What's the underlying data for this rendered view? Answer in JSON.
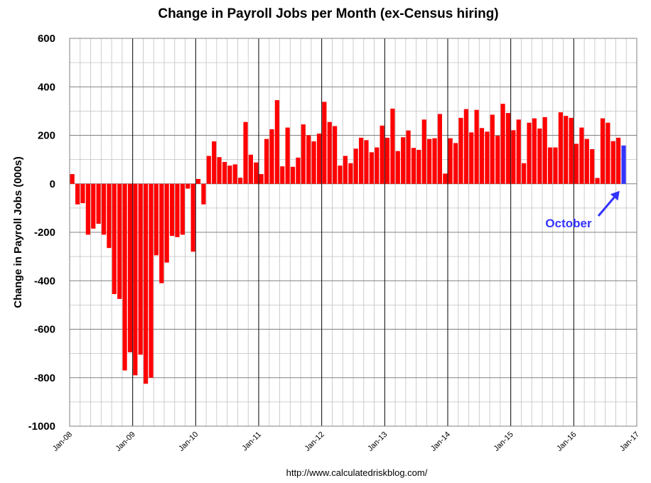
{
  "chart_data": {
    "type": "bar",
    "title": "Change in Payroll Jobs per Month (ex-Census hiring)",
    "ylabel": "Change in Payroll Jobs (000s)",
    "xlabel": "",
    "ylim": [
      -1000,
      600
    ],
    "yticks": [
      600,
      400,
      200,
      0,
      -200,
      -400,
      -600,
      -800,
      -1000
    ],
    "ytick_labels": [
      "600",
      "400",
      "200",
      "0",
      "-200",
      "-400",
      "-600",
      "-800",
      "-1000"
    ],
    "xlim": [
      "Jan-08",
      "Jan-17"
    ],
    "xtick_labels": [
      "Jan-08",
      "Jan-09",
      "Jan-10",
      "Jan-11",
      "Jan-12",
      "Jan-13",
      "Jan-14",
      "Jan-15",
      "Jan-16",
      "Jan-17"
    ],
    "grid": true,
    "start_month": "Jan-08",
    "colors": {
      "bars": "#ff0000",
      "highlight": "#3333ff",
      "major_grid": "#000000",
      "minor_grid": "#c0c0c0"
    },
    "values": [
      40,
      -85,
      -80,
      -210,
      -185,
      -165,
      -210,
      -265,
      -455,
      -475,
      -770,
      -695,
      -790,
      -705,
      -825,
      -800,
      -295,
      -410,
      -325,
      -215,
      -220,
      -210,
      -20,
      -280,
      20,
      -85,
      115,
      175,
      110,
      90,
      75,
      80,
      25,
      255,
      120,
      88,
      40,
      185,
      225,
      345,
      72,
      232,
      70,
      108,
      245,
      200,
      175,
      207,
      338,
      255,
      238,
      75,
      115,
      85,
      145,
      190,
      180,
      130,
      150,
      240,
      190,
      310,
      135,
      192,
      220,
      148,
      140,
      265,
      185,
      188,
      288,
      42,
      188,
      168,
      272,
      308,
      212,
      305,
      230,
      215,
      285,
      198,
      330,
      292,
      221,
      265,
      85,
      252,
      270,
      228,
      275,
      150,
      150,
      295,
      280,
      272,
      165,
      232,
      185,
      143,
      24,
      270,
      252,
      176,
      190,
      158
    ],
    "highlight_index": 105,
    "annotations": [
      {
        "text": "October",
        "arrow_to_index": 105
      }
    ]
  },
  "source": "http://www.calculatedriskblog.com/"
}
